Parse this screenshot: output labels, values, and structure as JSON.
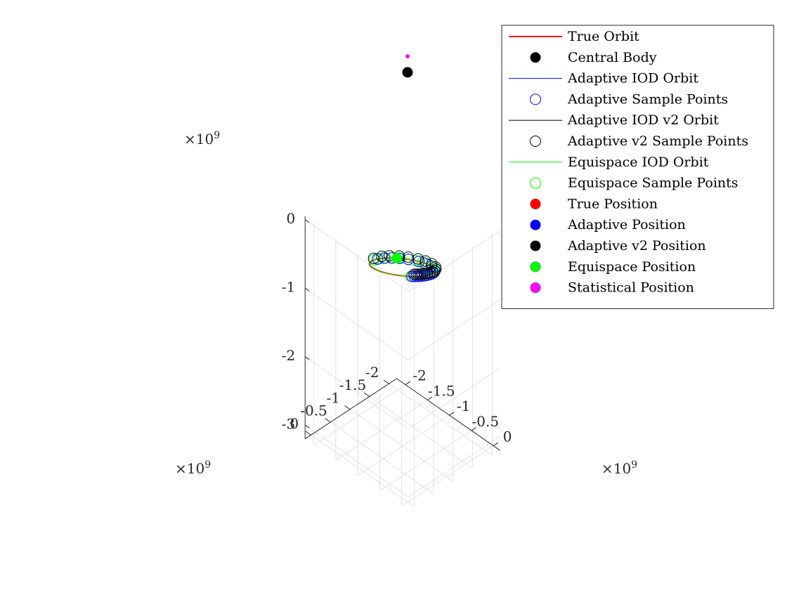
{
  "chart_data": {
    "type": "line3d",
    "axes": {
      "x": {
        "ticks": [
          0,
          -0.5,
          -1,
          -1.5,
          -2
        ],
        "tick_labels": [
          "0",
          "-0.5",
          "-1",
          "-1.5",
          "-2"
        ],
        "multiplier": "×10",
        "exponent": "9",
        "range": [
          -2.2,
          0.15
        ]
      },
      "y": {
        "ticks": [
          0,
          -0.5,
          -1,
          -1.5,
          -2
        ],
        "tick_labels": [
          "0",
          "-0.5",
          "-1",
          "-1.5",
          "-2"
        ],
        "multiplier": "×10",
        "exponent": "9",
        "range": [
          -2.2,
          0.15
        ]
      },
      "z": {
        "ticks": [
          0,
          -1,
          -2,
          -3
        ],
        "tick_labels": [
          "0",
          "-1",
          "-2",
          "-3"
        ],
        "multiplier": "×10",
        "exponent": "9",
        "range": [
          -3.2,
          0.05
        ]
      }
    },
    "grid": true,
    "legend": {
      "placement": "top-right",
      "entries": [
        {
          "label": "True Orbit",
          "kind": "line",
          "color": "#ff0000",
          "width": 2
        },
        {
          "label": "Central Body",
          "kind": "dot",
          "color": "#000000"
        },
        {
          "label": "Adaptive IOD Orbit",
          "kind": "line",
          "color": "#0000ff",
          "width": 1
        },
        {
          "label": "Adaptive Sample Points",
          "kind": "ring",
          "color": "#0000ff"
        },
        {
          "label": "Adaptive IOD v2 Orbit",
          "kind": "line",
          "color": "#000000",
          "width": 1
        },
        {
          "label": "Adaptive v2 Sample Points",
          "kind": "ring",
          "color": "#000000"
        },
        {
          "label": "Equispace IOD Orbit",
          "kind": "line",
          "color": "#00ff00",
          "width": 1
        },
        {
          "label": "Equispace Sample Points",
          "kind": "ring",
          "color": "#00ff00"
        },
        {
          "label": "True Position",
          "kind": "dot",
          "color": "#ff0000"
        },
        {
          "label": "Adaptive Position",
          "kind": "dot",
          "color": "#0000ff"
        },
        {
          "label": "Adaptive v2 Position",
          "kind": "dot",
          "color": "#000000"
        },
        {
          "label": "Equispace Position",
          "kind": "dot",
          "color": "#00ff00"
        },
        {
          "label": "Statistical Position",
          "kind": "dot",
          "color": "#ff00ff"
        }
      ]
    },
    "orbit": {
      "description_units": "1e9",
      "periapsis": [
        0.0,
        0.0,
        0.1
      ],
      "apoapsis": [
        -2.15,
        -2.15,
        -1.4
      ],
      "semi_minor_dir": [
        0.7,
        -0.7,
        0.0
      ],
      "semi_minor": 0.55,
      "sense": -1
    },
    "central_body": [
      0.0,
      0.0,
      0.0
    ],
    "positions": {
      "true_position": [
        -2.12,
        -2.12,
        -1.35
      ],
      "equispace_position": [
        -2.12,
        -2.12,
        -1.35
      ],
      "statistical_position": [
        0.0,
        0.0,
        0.1
      ]
    },
    "sample_points": {
      "adaptive_E_deg": [
        8,
        12,
        16,
        20,
        24,
        28,
        34,
        40,
        48,
        56,
        66,
        78,
        108,
        126,
        140,
        160,
        176,
        190,
        204,
        220
      ],
      "adaptive_v2_E_deg": [
        10,
        14,
        18,
        22,
        26,
        32,
        38,
        46,
        54,
        64,
        76,
        90,
        110,
        128,
        144,
        162,
        178,
        196,
        212,
        236
      ],
      "equispace_E_deg": [
        6,
        20,
        34,
        48,
        62,
        76,
        90,
        104,
        118,
        132,
        146,
        160,
        174,
        188,
        202,
        216,
        230
      ]
    }
  }
}
